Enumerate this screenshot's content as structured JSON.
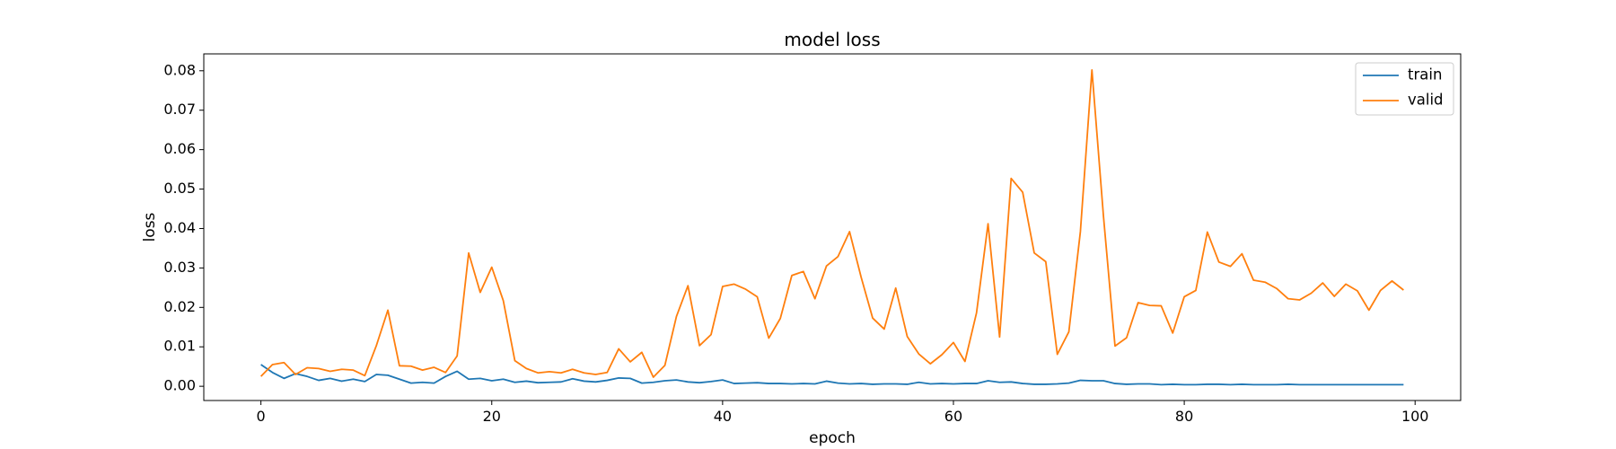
{
  "chart_data": {
    "type": "line",
    "title": "model loss",
    "xlabel": "epoch",
    "ylabel": "loss",
    "xlim": [
      -4.95,
      103.95
    ],
    "ylim": [
      -0.00361,
      0.08428
    ],
    "xticks": [
      0,
      20,
      40,
      60,
      80,
      100
    ],
    "xtick_labels": [
      "0",
      "20",
      "40",
      "60",
      "80",
      "100"
    ],
    "yticks": [
      0.0,
      0.01,
      0.02,
      0.03,
      0.04,
      0.05,
      0.06,
      0.07,
      0.08
    ],
    "ytick_labels": [
      "0.00",
      "0.01",
      "0.02",
      "0.03",
      "0.04",
      "0.05",
      "0.06",
      "0.07",
      "0.08"
    ],
    "grid": false,
    "legend_position": "upper-right",
    "series": [
      {
        "name": "train",
        "color": "#1f77b4",
        "x": [
          0,
          1,
          2,
          3,
          4,
          5,
          6,
          7,
          8,
          9,
          10,
          11,
          12,
          13,
          14,
          15,
          16,
          17,
          18,
          19,
          20,
          21,
          22,
          23,
          24,
          25,
          26,
          27,
          28,
          29,
          30,
          31,
          32,
          33,
          34,
          35,
          36,
          37,
          38,
          39,
          40,
          41,
          42,
          43,
          44,
          45,
          46,
          47,
          48,
          49,
          50,
          51,
          52,
          53,
          54,
          55,
          56,
          57,
          58,
          59,
          60,
          61,
          62,
          63,
          64,
          65,
          66,
          67,
          68,
          69,
          70,
          71,
          72,
          73,
          74,
          75,
          76,
          77,
          78,
          79,
          80,
          81,
          82,
          83,
          84,
          85,
          86,
          87,
          88,
          89,
          90,
          91,
          92,
          93,
          94,
          95,
          96,
          97,
          98,
          99
        ],
        "values": [
          0.0055,
          0.0035,
          0.002,
          0.0032,
          0.0025,
          0.0015,
          0.002,
          0.0013,
          0.0018,
          0.0012,
          0.003,
          0.0028,
          0.0018,
          0.0008,
          0.001,
          0.0008,
          0.0025,
          0.0038,
          0.0018,
          0.002,
          0.0014,
          0.0018,
          0.001,
          0.0013,
          0.0009,
          0.001,
          0.0011,
          0.0019,
          0.0013,
          0.0011,
          0.0015,
          0.0021,
          0.002,
          0.0008,
          0.001,
          0.0014,
          0.0016,
          0.0011,
          0.0009,
          0.0012,
          0.0016,
          0.0007,
          0.0008,
          0.0009,
          0.0007,
          0.0007,
          0.0006,
          0.0007,
          0.0006,
          0.0013,
          0.0008,
          0.0006,
          0.0007,
          0.0005,
          0.0006,
          0.0006,
          0.0005,
          0.001,
          0.0006,
          0.0007,
          0.0006,
          0.0007,
          0.0007,
          0.0014,
          0.001,
          0.0011,
          0.0007,
          0.0005,
          0.0005,
          0.0006,
          0.0008,
          0.0015,
          0.0014,
          0.0014,
          0.0007,
          0.0005,
          0.0006,
          0.0006,
          0.0004,
          0.0005,
          0.0004,
          0.0004,
          0.0005,
          0.0005,
          0.0004,
          0.0005,
          0.0004,
          0.0004,
          0.0004,
          0.0005,
          0.0004,
          0.0004,
          0.0004,
          0.0004,
          0.0004,
          0.0004,
          0.0004,
          0.0004,
          0.0004,
          0.0004
        ]
      },
      {
        "name": "valid",
        "color": "#ff7f0e",
        "x": [
          0,
          1,
          2,
          3,
          4,
          5,
          6,
          7,
          8,
          9,
          10,
          11,
          12,
          13,
          14,
          15,
          16,
          17,
          18,
          19,
          20,
          21,
          22,
          23,
          24,
          25,
          26,
          27,
          28,
          29,
          30,
          31,
          32,
          33,
          34,
          35,
          36,
          37,
          38,
          39,
          40,
          41,
          42,
          43,
          44,
          45,
          46,
          47,
          48,
          49,
          50,
          51,
          52,
          53,
          54,
          55,
          56,
          57,
          58,
          59,
          60,
          61,
          62,
          63,
          64,
          65,
          66,
          67,
          68,
          69,
          70,
          71,
          72,
          73,
          74,
          75,
          76,
          77,
          78,
          79,
          80,
          81,
          82,
          83,
          84,
          85,
          86,
          87,
          88,
          89,
          90,
          91,
          92,
          93,
          94,
          95,
          96,
          97,
          98,
          99
        ],
        "values": [
          0.0025,
          0.0055,
          0.006,
          0.003,
          0.0047,
          0.0045,
          0.0038,
          0.0043,
          0.0041,
          0.0027,
          0.0103,
          0.0193,
          0.0052,
          0.0051,
          0.0041,
          0.0048,
          0.0035,
          0.0077,
          0.0338,
          0.0238,
          0.0302,
          0.0217,
          0.0065,
          0.0045,
          0.0034,
          0.0037,
          0.0034,
          0.0043,
          0.0034,
          0.003,
          0.0035,
          0.0095,
          0.0062,
          0.0086,
          0.0023,
          0.0053,
          0.0177,
          0.0255,
          0.0103,
          0.0131,
          0.0253,
          0.0259,
          0.0246,
          0.0227,
          0.0122,
          0.0172,
          0.0281,
          0.0291,
          0.0222,
          0.0305,
          0.0329,
          0.0392,
          0.0277,
          0.0173,
          0.0145,
          0.0249,
          0.0126,
          0.0082,
          0.0057,
          0.008,
          0.0111,
          0.0063,
          0.0186,
          0.0412,
          0.0125,
          0.0527,
          0.0492,
          0.0338,
          0.0316,
          0.0081,
          0.0138,
          0.0392,
          0.0802,
          0.0431,
          0.0102,
          0.0123,
          0.0212,
          0.0205,
          0.0204,
          0.0135,
          0.0227,
          0.0243,
          0.0391,
          0.0315,
          0.0304,
          0.0336,
          0.0269,
          0.0264,
          0.0248,
          0.0222,
          0.0219,
          0.0236,
          0.0262,
          0.0228,
          0.0259,
          0.0242,
          0.0193,
          0.0243,
          0.0267,
          0.0244
        ]
      }
    ]
  }
}
